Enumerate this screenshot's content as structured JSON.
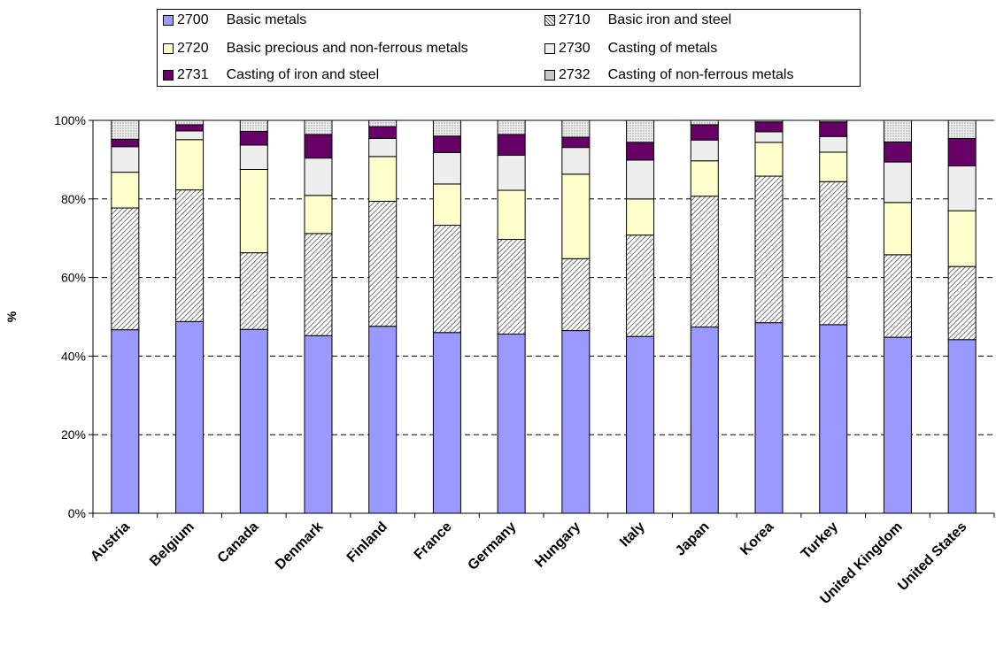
{
  "chart_data": {
    "type": "bar",
    "stacked": true,
    "percent": true,
    "ylabel": "%",
    "ylim": [
      0,
      100
    ],
    "yticks": [
      "0%",
      "20%",
      "40%",
      "60%",
      "80%",
      "100%"
    ],
    "grid": true,
    "legend_position": "top",
    "categories": [
      "Austria",
      "Belgium",
      "Canada",
      "Denmark",
      "Finland",
      "France",
      "Germany",
      "Hungary",
      "Italy",
      "Japan",
      "Korea",
      "Turkey",
      "United Kingdom",
      "United States"
    ],
    "series": [
      {
        "code": "2700",
        "name": "Basic metals",
        "color": "#9999FF",
        "pattern": "solid",
        "values": [
          46.7,
          48.8,
          46.8,
          45.2,
          47.6,
          46.0,
          45.6,
          46.5,
          45.0,
          47.4,
          48.5,
          48.0,
          44.8,
          44.2
        ]
      },
      {
        "code": "2710",
        "name": "Basic iron and steel",
        "color": "#808080",
        "pattern": "diagonal",
        "values": [
          31.0,
          33.5,
          19.5,
          26.0,
          31.8,
          27.3,
          24.1,
          18.3,
          25.8,
          33.3,
          37.3,
          36.4,
          21.0,
          18.6
        ]
      },
      {
        "code": "2720",
        "name": "Basic precious and non-ferrous metals",
        "color": "#FFFFCC",
        "pattern": "solid",
        "values": [
          9.1,
          12.8,
          21.2,
          9.7,
          11.4,
          10.5,
          12.5,
          21.5,
          9.2,
          9.0,
          8.6,
          7.5,
          13.3,
          14.2
        ]
      },
      {
        "code": "2730",
        "name": "Casting of metals",
        "color": "#EEEEEE",
        "pattern": "solid",
        "values": [
          6.5,
          2.2,
          6.2,
          9.5,
          4.6,
          8.0,
          8.9,
          6.8,
          9.9,
          5.3,
          2.7,
          4.0,
          10.3,
          11.4
        ]
      },
      {
        "code": "2731",
        "name": "Casting of iron and steel",
        "color": "#660066",
        "pattern": "solid",
        "values": [
          1.9,
          1.6,
          3.5,
          6.0,
          3.0,
          4.2,
          5.3,
          2.6,
          4.5,
          3.9,
          2.5,
          3.7,
          5.1,
          7.0
        ]
      },
      {
        "code": "2732",
        "name": "Casting of non-ferrous metals",
        "color": "#CCCCCC",
        "pattern": "dots",
        "values": [
          4.8,
          1.1,
          2.8,
          3.6,
          1.6,
          4.0,
          3.6,
          4.3,
          5.6,
          1.1,
          0.4,
          0.4,
          5.5,
          4.6
        ]
      }
    ]
  }
}
